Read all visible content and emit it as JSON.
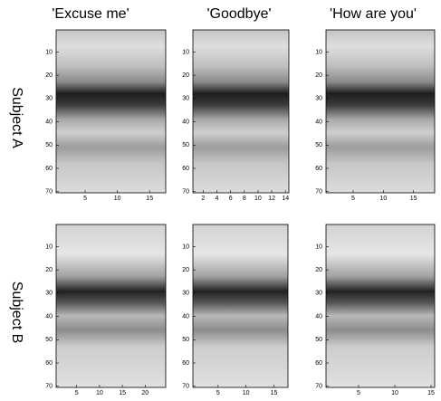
{
  "column_titles": [
    "'Excuse me'",
    "'Goodbye'",
    "'How are you'"
  ],
  "row_labels": [
    "Subject A",
    "Subject B"
  ],
  "panels": [
    {
      "xlim": [
        0.5,
        17.5
      ],
      "ylim": [
        0.5,
        70.5
      ],
      "xticks": [
        5,
        10,
        15
      ],
      "yticks": [
        10,
        20,
        30,
        40,
        50,
        60,
        70
      ]
    },
    {
      "xlim": [
        0.5,
        14.5
      ],
      "ylim": [
        0.5,
        70.5
      ],
      "xticks": [
        2,
        4,
        6,
        8,
        10,
        12,
        14
      ],
      "yticks": [
        10,
        20,
        30,
        40,
        50,
        60,
        70
      ]
    },
    {
      "xlim": [
        0.5,
        18.5
      ],
      "ylim": [
        0.5,
        70.5
      ],
      "xticks": [
        5,
        10,
        15
      ],
      "yticks": [
        10,
        20,
        30,
        40,
        50,
        60,
        70
      ]
    },
    {
      "xlim": [
        0.5,
        24.5
      ],
      "ylim": [
        0.5,
        70.5
      ],
      "xticks": [
        5,
        10,
        15,
        20
      ],
      "yticks": [
        10,
        20,
        30,
        40,
        50,
        60,
        70
      ]
    },
    {
      "xlim": [
        0.5,
        17.5
      ],
      "ylim": [
        0.5,
        70.5
      ],
      "xticks": [
        5,
        10,
        15
      ],
      "yticks": [
        10,
        20,
        30,
        40,
        50,
        60,
        70
      ]
    },
    {
      "xlim": [
        0.5,
        15.5
      ],
      "ylim": [
        0.5,
        70.5
      ],
      "xticks": [
        5,
        10,
        15
      ],
      "yticks": [
        10,
        20,
        30,
        40,
        50,
        60,
        70
      ]
    }
  ]
}
